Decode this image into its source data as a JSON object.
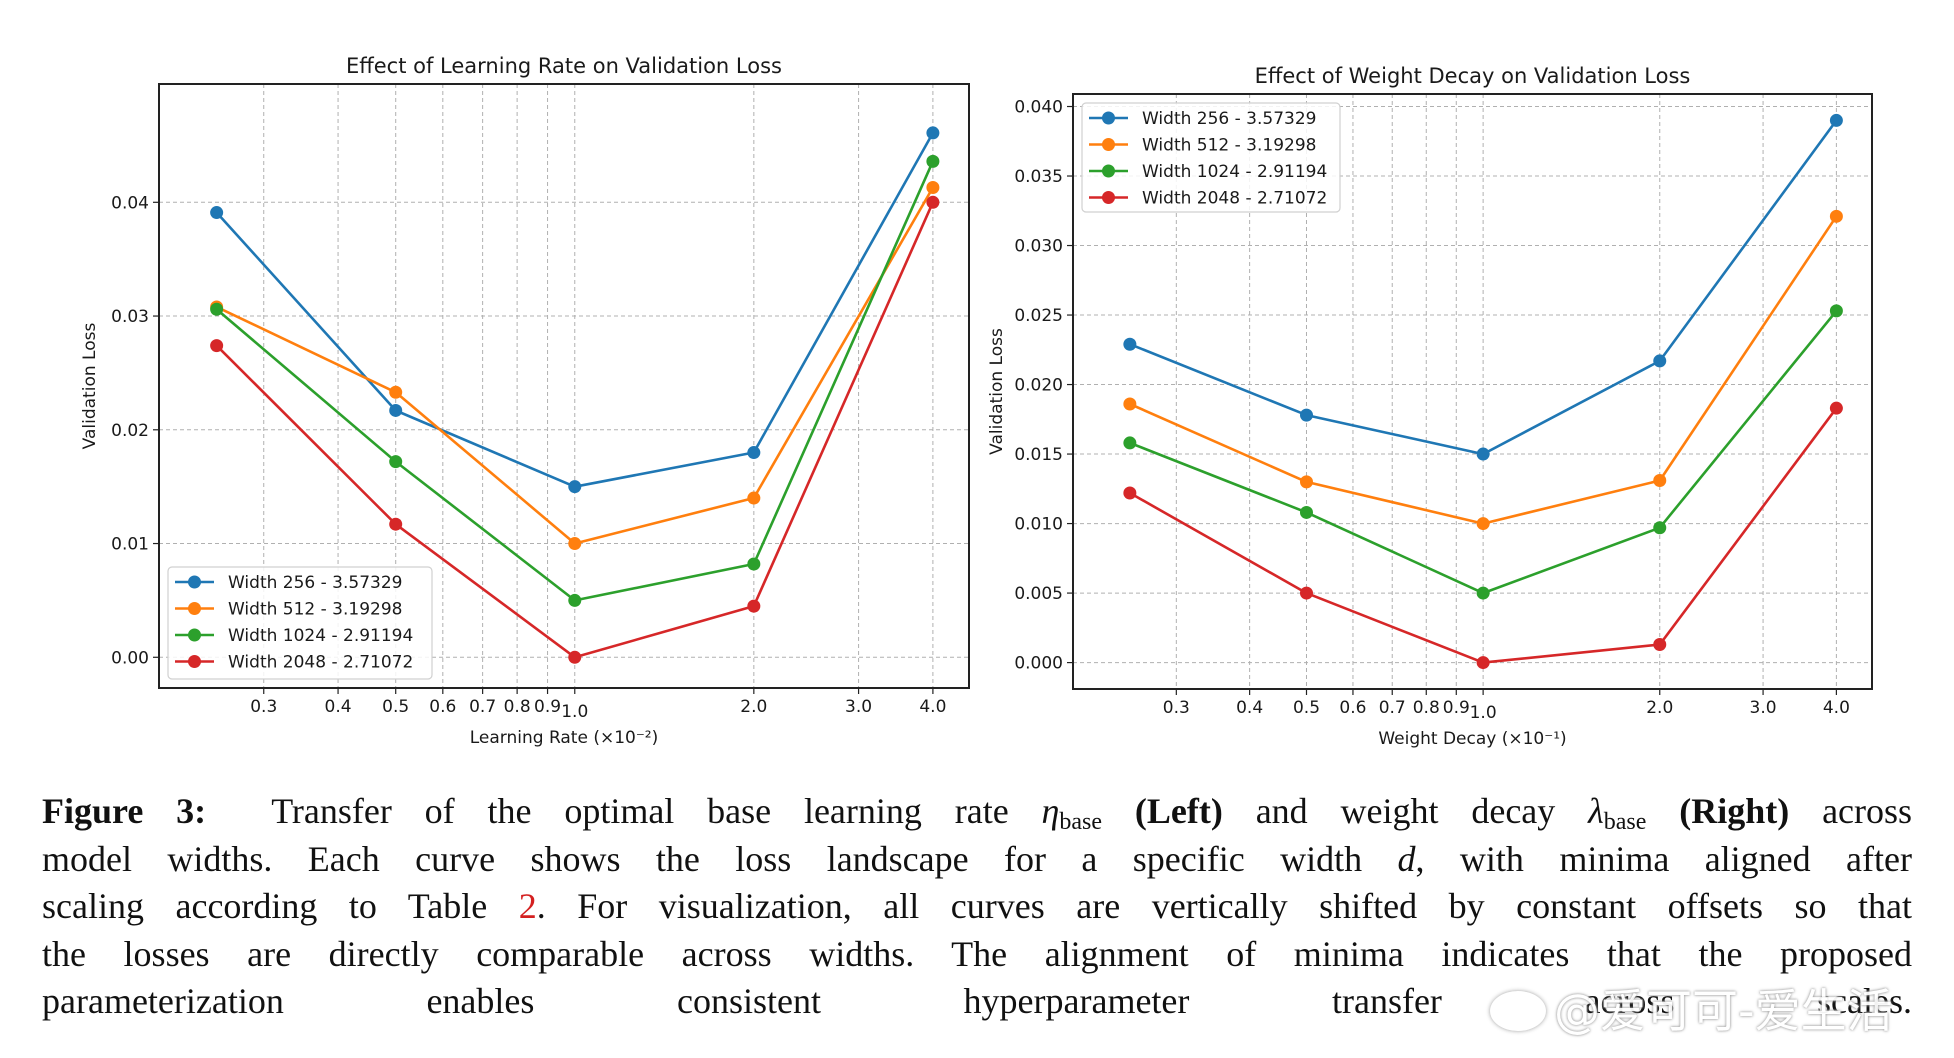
{
  "chart_data": [
    {
      "type": "line",
      "title": "Effect of Learning Rate on Validation Loss",
      "xlabel": "Learning Rate (×10⁻²)",
      "ylabel": "Validation Loss",
      "xscale": "log",
      "x": [
        0.25,
        0.5,
        1.0,
        2.0,
        4.0
      ],
      "xlim": [
        0.2,
        4.6
      ],
      "ylim": [
        -0.0027,
        0.0504
      ],
      "xticks": [
        0.3,
        0.4,
        0.5,
        0.6,
        0.7,
        0.8,
        0.9,
        1.0,
        2.0,
        3.0,
        4.0
      ],
      "xtick_labels": [
        "0.3",
        "0.4",
        "0.5",
        "0.6",
        "0.7",
        "0.8",
        "0.9",
        "1.0",
        "2.0",
        "3.0",
        "4.0"
      ],
      "yticks": [
        0.0,
        0.01,
        0.02,
        0.03,
        0.04
      ],
      "ytick_labels": [
        "0.00",
        "0.01",
        "0.02",
        "0.03",
        "0.04"
      ],
      "grid": true,
      "legend_position": "lower-left",
      "series": [
        {
          "name": "Width 256 - 3.57329",
          "color": "#1f77b4",
          "values": [
            0.0391,
            0.0217,
            0.015,
            0.018,
            0.0461
          ]
        },
        {
          "name": "Width 512 - 3.19298",
          "color": "#ff7f0e",
          "values": [
            0.0308,
            0.0233,
            0.01,
            0.014,
            0.0413
          ]
        },
        {
          "name": "Width 1024 - 2.91194",
          "color": "#2ca02c",
          "values": [
            0.0306,
            0.0172,
            0.005,
            0.0082,
            0.0436
          ]
        },
        {
          "name": "Width 2048 - 2.71072",
          "color": "#d62728",
          "values": [
            0.0274,
            0.0117,
            0.0,
            0.0045,
            0.04
          ]
        }
      ]
    },
    {
      "type": "line",
      "title": "Effect of Weight Decay on Validation Loss",
      "xlabel": "Weight Decay (×10⁻¹)",
      "ylabel": "Validation Loss",
      "xscale": "log",
      "x": [
        0.25,
        0.5,
        1.0,
        2.0,
        4.0
      ],
      "xlim": [
        0.2,
        4.6
      ],
      "ylim": [
        -0.0019,
        0.0409
      ],
      "xticks": [
        0.3,
        0.4,
        0.5,
        0.6,
        0.7,
        0.8,
        0.9,
        1.0,
        2.0,
        3.0,
        4.0
      ],
      "xtick_labels": [
        "0.3",
        "0.4",
        "0.5",
        "0.6",
        "0.7",
        "0.8",
        "0.9",
        "1.0",
        "2.0",
        "3.0",
        "4.0"
      ],
      "yticks": [
        0.0,
        0.005,
        0.01,
        0.015,
        0.02,
        0.025,
        0.03,
        0.035,
        0.04
      ],
      "ytick_labels": [
        "0.000",
        "0.005",
        "0.010",
        "0.015",
        "0.020",
        "0.025",
        "0.030",
        "0.035",
        "0.040"
      ],
      "grid": true,
      "legend_position": "upper-left",
      "series": [
        {
          "name": "Width 256 - 3.57329",
          "color": "#1f77b4",
          "values": [
            0.0229,
            0.0178,
            0.015,
            0.0217,
            0.039
          ]
        },
        {
          "name": "Width 512 - 3.19298",
          "color": "#ff7f0e",
          "values": [
            0.0186,
            0.013,
            0.01,
            0.0131,
            0.0321
          ]
        },
        {
          "name": "Width 1024 - 2.91194",
          "color": "#2ca02c",
          "values": [
            0.0158,
            0.0108,
            0.005,
            0.0097,
            0.0253
          ]
        },
        {
          "name": "Width 2048 - 2.71072",
          "color": "#d62728",
          "values": [
            0.0122,
            0.005,
            0.0,
            0.0013,
            0.0183
          ]
        }
      ]
    }
  ],
  "caption": {
    "label": "Figure 3:",
    "lines": [
      [
        "Transfer of the optimal base learning rate ",
        "η",
        "base",
        " ",
        "(Left)",
        " and weight decay ",
        "λ",
        "base",
        " ",
        "(Right)",
        " across"
      ],
      "model widths.  Each curve shows the loss landscape for a specific width d, with minima aligned after",
      [
        "scaling according to Table ",
        "2",
        ".  For visualization, all curves are vertically shifted by constant offsets so that"
      ],
      "the losses are directly comparable across widths.  The alignment of minima indicates that the proposed",
      "parameterization enables consistent hyperparameter transfer across scales."
    ],
    "line1_text": "Transfer of the optimal base learning rate",
    "eta": "η",
    "lambda": "λ",
    "sub_base": "base",
    "left_bold": "(Left)",
    "mid_text": "and weight decay",
    "right_bold": "(Right)",
    "line1_end": "across",
    "line2_a": "model widths.  Each curve shows the loss landscape for a specific width",
    "line2_d": "d",
    "line2_b": ", with minima aligned after",
    "line3_a": "scaling according to Table",
    "line3_ref": "2",
    "line3_b": ".  For visualization, all curves are vertically shifted by constant offsets so that",
    "line4": "the losses are directly comparable across widths.  The alignment of minima indicates that the proposed",
    "line5": "parameterization enables consistent hyperparameter transfer across scales."
  },
  "watermark": "@爱可可-爱生活"
}
